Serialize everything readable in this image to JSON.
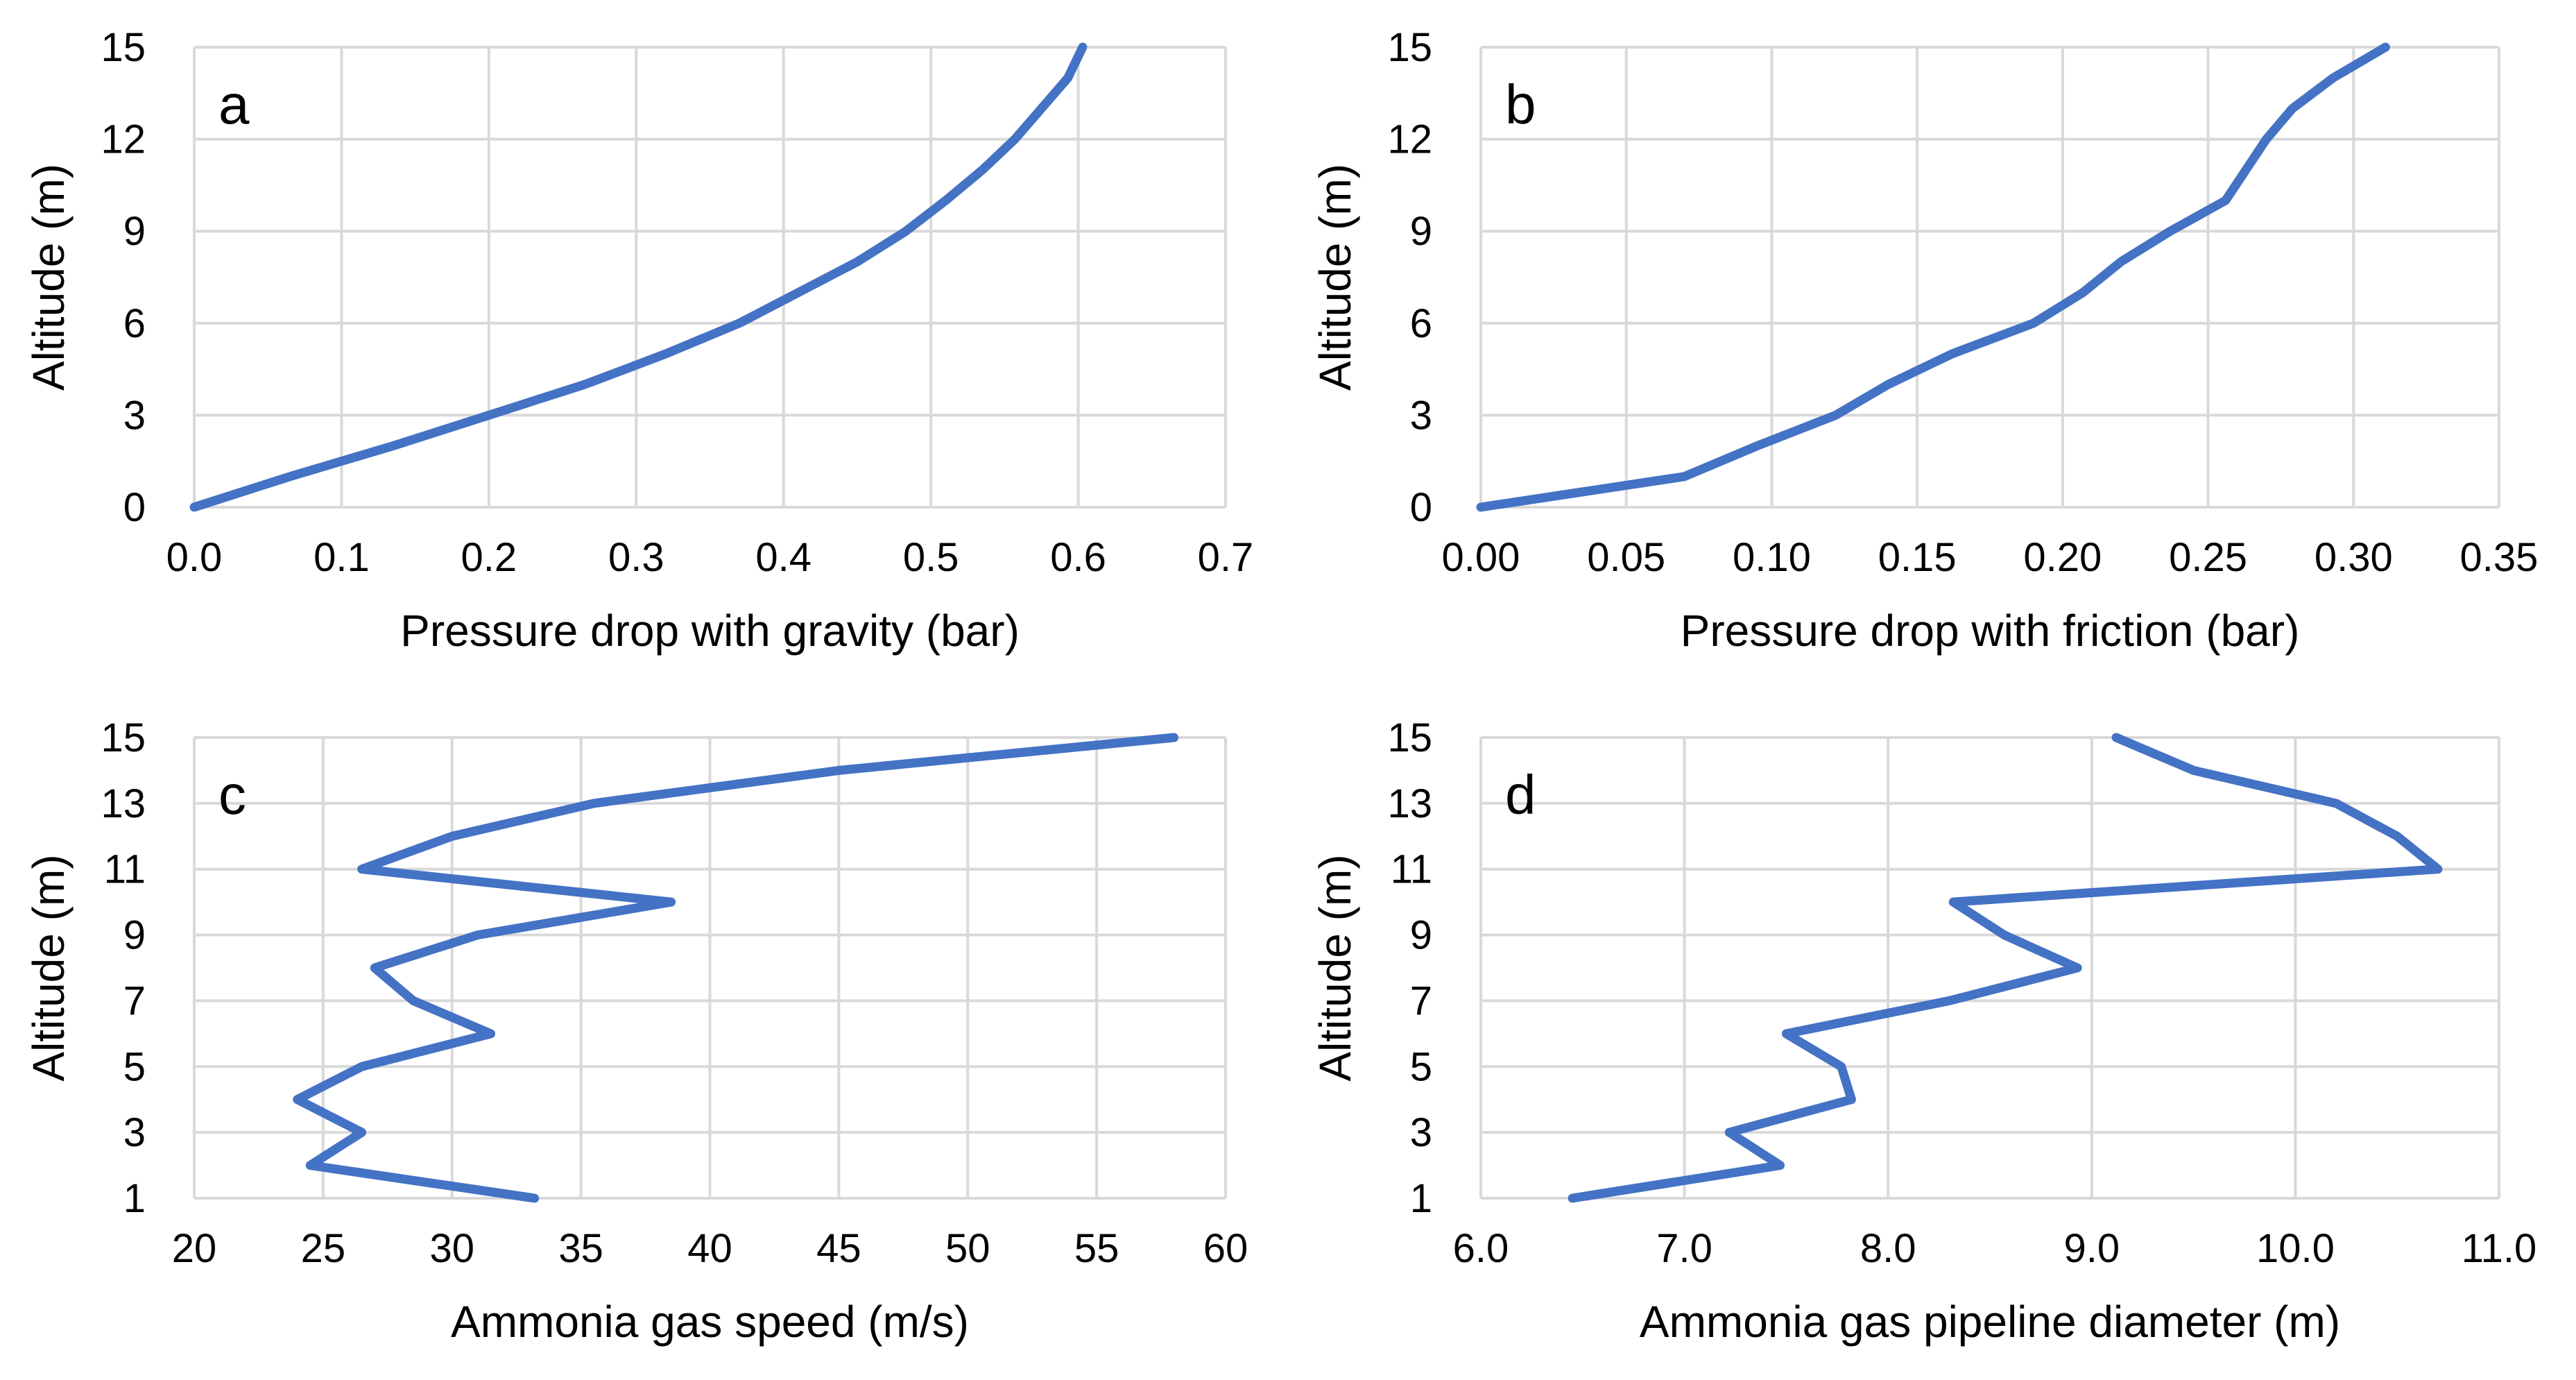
{
  "colors": {
    "series": "#4472C4",
    "grid": "#d9d9d9",
    "text": "#000000"
  },
  "chart_data": [
    {
      "id": "a",
      "type": "line",
      "panel_letter": "a",
      "xlabel": "Pressure drop with gravity (bar)",
      "ylabel": "Altitude (m)",
      "xlim": [
        0,
        0.7
      ],
      "ylim": [
        0,
        15
      ],
      "x_ticks": [
        0.0,
        0.1,
        0.2,
        0.3,
        0.4,
        0.5,
        0.6,
        0.7
      ],
      "x_tick_labels": [
        "0.0",
        "0.1",
        "0.2",
        "0.3",
        "0.4",
        "0.5",
        "0.6",
        "0.7"
      ],
      "y_ticks": [
        0,
        3,
        6,
        9,
        12,
        15
      ],
      "y_tick_labels": [
        "0",
        "3",
        "6",
        "9",
        "12",
        "15"
      ],
      "grid": true,
      "series": [
        {
          "name": "Pressure drop with gravity",
          "x": [
            0.0,
            0.065,
            0.135,
            0.2,
            0.265,
            0.32,
            0.37,
            0.41,
            0.45,
            0.483,
            0.51,
            0.535,
            0.557,
            0.575,
            0.593,
            0.603
          ],
          "y": [
            0,
            1,
            2,
            3,
            4,
            5,
            6,
            7,
            8,
            9,
            10,
            11,
            12,
            13,
            14,
            15
          ]
        }
      ]
    },
    {
      "id": "b",
      "type": "line",
      "panel_letter": "b",
      "xlabel": "Pressure drop with friction (bar)",
      "ylabel": "Altitude (m)",
      "xlim": [
        0,
        0.35
      ],
      "ylim": [
        0,
        15
      ],
      "x_ticks": [
        0.0,
        0.05,
        0.1,
        0.15,
        0.2,
        0.25,
        0.3,
        0.35
      ],
      "x_tick_labels": [
        "0.00",
        "0.05",
        "0.10",
        "0.15",
        "0.20",
        "0.25",
        "0.30",
        "0.35"
      ],
      "y_ticks": [
        0,
        3,
        6,
        9,
        12,
        15
      ],
      "y_tick_labels": [
        "0",
        "3",
        "6",
        "9",
        "12",
        "15"
      ],
      "grid": true,
      "series": [
        {
          "name": "Pressure drop with friction",
          "x": [
            0.0,
            0.07,
            0.095,
            0.122,
            0.14,
            0.162,
            0.19,
            0.207,
            0.22,
            0.237,
            0.256,
            0.263,
            0.27,
            0.279,
            0.293,
            0.311
          ],
          "y": [
            0,
            1,
            2,
            3,
            4,
            5,
            6,
            7,
            8,
            9,
            10,
            11,
            12,
            13,
            14,
            15
          ]
        }
      ]
    },
    {
      "id": "c",
      "type": "line",
      "panel_letter": "c",
      "xlabel": "Ammonia gas speed (m/s)",
      "ylabel": "Altitude (m)",
      "xlim": [
        20,
        60
      ],
      "ylim": [
        1,
        15
      ],
      "x_ticks": [
        20,
        25,
        30,
        35,
        40,
        45,
        50,
        55,
        60
      ],
      "x_tick_labels": [
        "20",
        "25",
        "30",
        "35",
        "40",
        "45",
        "50",
        "55",
        "60"
      ],
      "y_ticks": [
        1,
        3,
        5,
        7,
        9,
        11,
        13,
        15
      ],
      "y_tick_labels": [
        "1",
        "3",
        "5",
        "7",
        "9",
        "11",
        "13",
        "15"
      ],
      "grid": true,
      "series": [
        {
          "name": "Ammonia gas speed",
          "x": [
            33.2,
            24.5,
            26.5,
            24.0,
            26.5,
            31.5,
            28.5,
            27.0,
            31.0,
            38.5,
            26.5,
            30.0,
            35.5,
            45.0,
            58.0
          ],
          "y": [
            1,
            2,
            3,
            4,
            5,
            6,
            7,
            8,
            9,
            10,
            11,
            12,
            13,
            14,
            15
          ]
        }
      ]
    },
    {
      "id": "d",
      "type": "line",
      "panel_letter": "d",
      "xlabel": "Ammonia gas pipeline diameter (m)",
      "ylabel": "Altitude (m)",
      "xlim": [
        6,
        11
      ],
      "ylim": [
        1,
        15
      ],
      "x_ticks": [
        6,
        7,
        8,
        9,
        10,
        11
      ],
      "x_tick_labels": [
        "6.0",
        "7.0",
        "8.0",
        "9.0",
        "10.0",
        "11.0"
      ],
      "y_ticks": [
        1,
        3,
        5,
        7,
        9,
        11,
        13,
        15
      ],
      "y_tick_labels": [
        "1",
        "3",
        "5",
        "7",
        "9",
        "11",
        "13",
        "15"
      ],
      "grid": true,
      "series": [
        {
          "name": "Ammonia gas pipeline diameter",
          "x": [
            6.45,
            7.47,
            7.22,
            7.82,
            7.77,
            7.5,
            8.3,
            8.93,
            8.57,
            8.32,
            10.7,
            10.5,
            10.2,
            9.5,
            9.12
          ],
          "y": [
            1,
            2,
            3,
            4,
            5,
            6,
            7,
            8,
            9,
            10,
            11,
            12,
            13,
            14,
            15
          ]
        }
      ]
    }
  ]
}
